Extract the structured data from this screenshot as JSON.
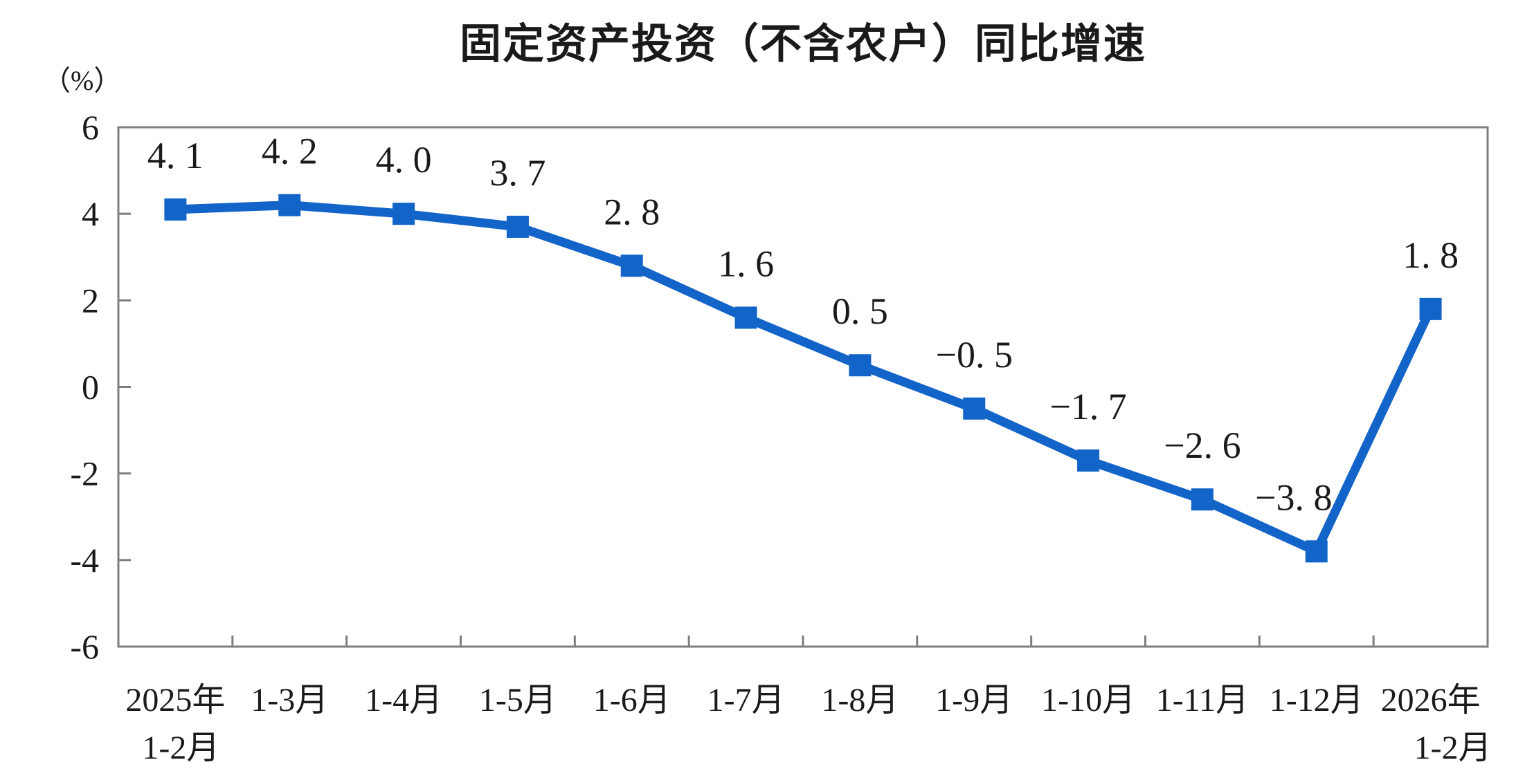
{
  "chart_data": {
    "type": "line",
    "title": "固定资产投资（不含农户）同比增速",
    "ylabel": "（%）",
    "xlabel": "",
    "categories": [
      [
        "2025年",
        "1-2月"
      ],
      [
        "1-3月"
      ],
      [
        "1-4月"
      ],
      [
        "1-5月"
      ],
      [
        "1-6月"
      ],
      [
        "1-7月"
      ],
      [
        "1-8月"
      ],
      [
        "1-9月"
      ],
      [
        "1-10月"
      ],
      [
        "1-11月"
      ],
      [
        "1-12月"
      ],
      [
        "2026年",
        "1-2月"
      ]
    ],
    "values": [
      4.1,
      4.2,
      4.0,
      3.7,
      2.8,
      1.6,
      0.5,
      -0.5,
      -1.7,
      -2.6,
      -3.8,
      1.8
    ],
    "point_labels": [
      "4. 1",
      "4. 2",
      "4. 0",
      "3. 7",
      "2. 8",
      "1. 6",
      "0. 5",
      "−0. 5",
      "−1. 7",
      "−2. 6",
      "−3. 8",
      "1. 8"
    ],
    "ylim": [
      -6,
      6
    ],
    "y_ticks": [
      6,
      4,
      2,
      0,
      -2,
      -4,
      -6
    ],
    "grid": false,
    "legend": "none",
    "marker_shape": "square",
    "line_color": "#1264C8",
    "axis_color": "#7E7E7E",
    "label_color": "#1A1A1A"
  }
}
